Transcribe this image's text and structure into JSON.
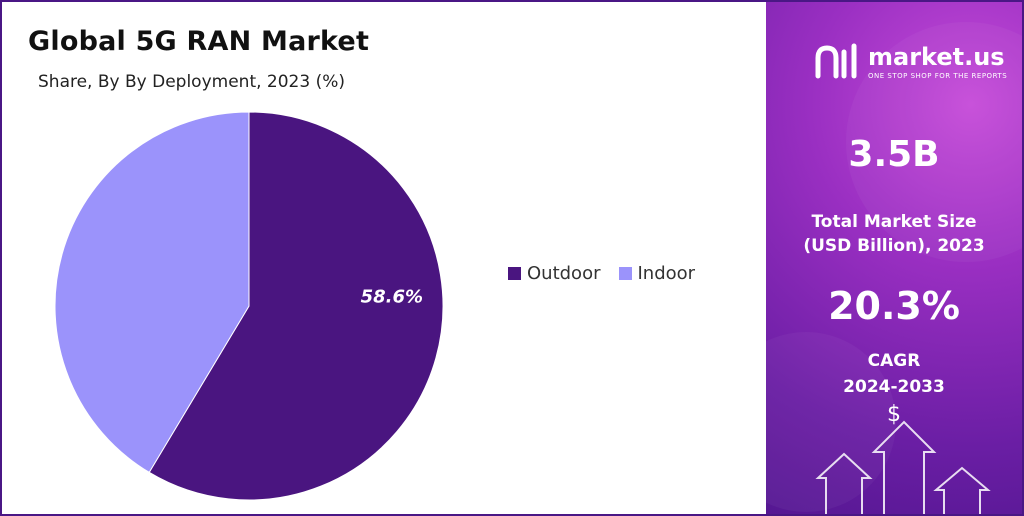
{
  "chart_data": {
    "type": "pie",
    "title": "Global 5G RAN Market",
    "subtitle": "Share, By By Deployment, 2023 (%)",
    "slices": [
      {
        "name": "Outdoor",
        "value": 58.6,
        "label": "58.6%",
        "color": "#4a1580"
      },
      {
        "name": "Indoor",
        "value": 41.4,
        "label": "",
        "color": "#9b93fb"
      }
    ],
    "legend_position": "right"
  },
  "sidebar": {
    "brand_name": "market.us",
    "brand_tagline": "ONE STOP SHOP FOR THE REPORTS",
    "market_size_value": "3.5B",
    "market_size_label_line1": "Total Market Size",
    "market_size_label_line2": "(USD Billion), 2023",
    "cagr_value": "20.3%",
    "cagr_label_line1": "CAGR",
    "cagr_label_line2": "2024-2033",
    "currency_symbol": "$"
  }
}
